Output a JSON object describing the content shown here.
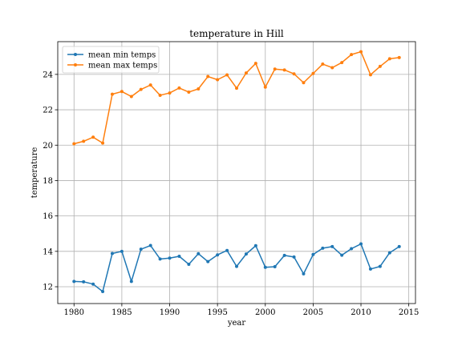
{
  "chart_data": {
    "type": "line",
    "title": "temperature in Hill",
    "xlabel": "year",
    "ylabel": "temperature",
    "xlim": [
      1978.3,
      2015.7
    ],
    "ylim": [
      11.05,
      25.85
    ],
    "xticks": [
      1980,
      1985,
      1990,
      1995,
      2000,
      2005,
      2010,
      2015
    ],
    "yticks": [
      12,
      14,
      16,
      18,
      20,
      22,
      24
    ],
    "grid": true,
    "legend_position": "top-left",
    "x": [
      1980,
      1981,
      1982,
      1983,
      1984,
      1985,
      1986,
      1987,
      1988,
      1989,
      1990,
      1991,
      1992,
      1993,
      1994,
      1995,
      1996,
      1997,
      1998,
      1999,
      2000,
      2001,
      2002,
      2003,
      2004,
      2005,
      2006,
      2007,
      2008,
      2009,
      2010,
      2011,
      2012,
      2013,
      2014
    ],
    "series": [
      {
        "name": "mean min temps",
        "color": "#1f77b4",
        "values": [
          12.3,
          12.28,
          12.15,
          11.73,
          13.88,
          14.0,
          12.3,
          14.12,
          14.33,
          13.57,
          13.62,
          13.72,
          13.27,
          13.87,
          13.42,
          13.8,
          14.05,
          13.15,
          13.85,
          14.32,
          13.1,
          13.13,
          13.77,
          13.68,
          12.73,
          13.82,
          14.18,
          14.27,
          13.78,
          14.15,
          14.42,
          13.0,
          13.15,
          13.92,
          14.27
        ]
      },
      {
        "name": "mean max temps",
        "color": "#ff7f0e",
        "values": [
          20.08,
          20.22,
          20.45,
          20.12,
          22.88,
          23.03,
          22.75,
          23.15,
          23.4,
          22.82,
          22.95,
          23.23,
          23.0,
          23.18,
          23.88,
          23.7,
          23.97,
          23.22,
          24.08,
          24.62,
          23.28,
          24.3,
          24.25,
          24.03,
          23.53,
          24.05,
          24.58,
          24.38,
          24.67,
          25.12,
          25.28,
          23.98,
          24.45,
          24.88,
          24.95
        ]
      }
    ]
  }
}
